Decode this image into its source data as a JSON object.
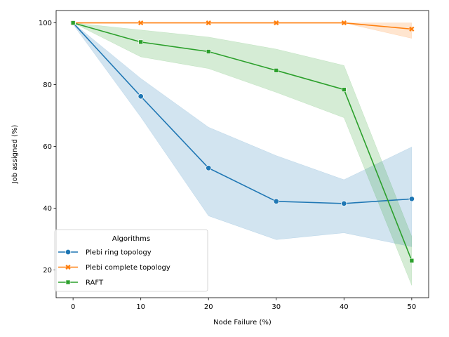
{
  "chart_data": {
    "type": "line",
    "xlabel": "Node Failure (%)",
    "ylabel": "Job assigned (%)",
    "xlim": [
      -2.5,
      52.5
    ],
    "ylim": [
      11,
      104
    ],
    "xticks": [
      0,
      10,
      20,
      30,
      40,
      50
    ],
    "yticks": [
      20,
      40,
      60,
      80,
      100
    ],
    "grid": false,
    "legend": {
      "title": "Algorithms",
      "placement": "lower-left"
    },
    "x": [
      0,
      10,
      20,
      30,
      40,
      50
    ],
    "series": [
      {
        "name": "Plebi ring topology",
        "color": "#1f77b4",
        "marker": "circle",
        "values": [
          100,
          76.2,
          53.0,
          42.2,
          41.5,
          43.0
        ],
        "ci_lower": [
          99.5,
          69.5,
          37.5,
          29.8,
          32.0,
          27.5
        ],
        "ci_upper": [
          100,
          82.0,
          66.2,
          57.0,
          49.2,
          59.8
        ]
      },
      {
        "name": "Plebi complete topology",
        "color": "#ff7f0e",
        "marker": "x",
        "values": [
          100,
          100,
          100,
          100,
          100,
          98.0
        ],
        "ci_lower": [
          100,
          100,
          100,
          100,
          100,
          95.0
        ],
        "ci_upper": [
          100,
          100,
          100,
          100,
          100,
          100
        ]
      },
      {
        "name": "RAFT",
        "color": "#2ca02c",
        "marker": "square",
        "values": [
          100,
          93.8,
          90.7,
          84.6,
          78.4,
          23.0
        ],
        "ci_lower": [
          100,
          89.0,
          85.2,
          77.5,
          69.3,
          15.0
        ],
        "ci_upper": [
          100,
          97.7,
          95.4,
          91.5,
          86.2,
          30.8
        ]
      }
    ]
  }
}
